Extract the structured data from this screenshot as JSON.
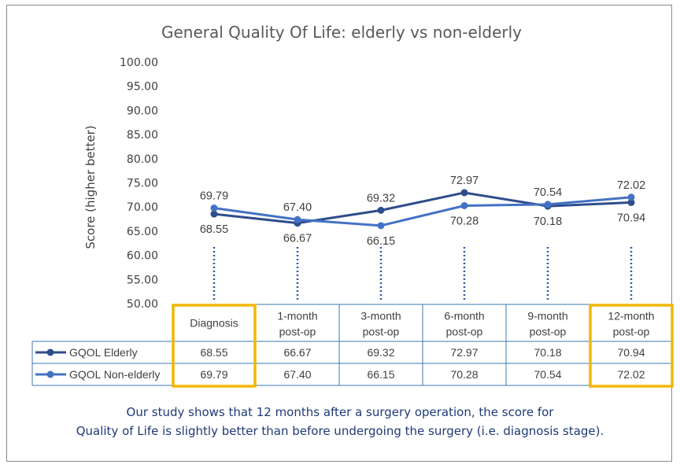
{
  "chart_data": {
    "type": "line",
    "title": "General Quality Of Life: elderly vs non-elderly",
    "ylabel": "Score (higher better)",
    "xlabel": "",
    "ylim": [
      50,
      100
    ],
    "yticks": [
      "100.00",
      "95.00",
      "90.00",
      "85.00",
      "80.00",
      "75.00",
      "70.00",
      "65.00",
      "60.00",
      "55.00",
      "50.00"
    ],
    "categories": [
      [
        "Diagnosis"
      ],
      [
        "1-month",
        "post-op"
      ],
      [
        "3-month",
        "post-op"
      ],
      [
        "6-month",
        "post-op"
      ],
      [
        "9-month",
        "post-op"
      ],
      [
        "12-month",
        "post-op"
      ]
    ],
    "series": [
      {
        "name": "GQOL Elderly",
        "color": "#2e4d8c",
        "values": [
          68.55,
          66.67,
          69.32,
          72.97,
          70.18,
          70.94
        ],
        "labels": [
          "68.55",
          "66.67",
          "69.32",
          "72.97",
          "70.18",
          "70.94"
        ]
      },
      {
        "name": "GQOL Non-elderly",
        "color": "#4472c4",
        "values": [
          69.79,
          67.4,
          66.15,
          70.28,
          70.54,
          72.02
        ],
        "labels": [
          "69.79",
          "67.40",
          "66.15",
          "70.28",
          "70.54",
          "72.02"
        ]
      }
    ],
    "legend": "data table",
    "grid": false,
    "highlight_color": "#f2b705",
    "highlighted_categories": [
      0,
      5
    ]
  },
  "caption": {
    "line1": "Our study shows that 12 months after a surgery operation, the score for",
    "line2": "Quality of Life is slightly better than before undergoing the surgery (i.e. diagnosis stage)."
  }
}
